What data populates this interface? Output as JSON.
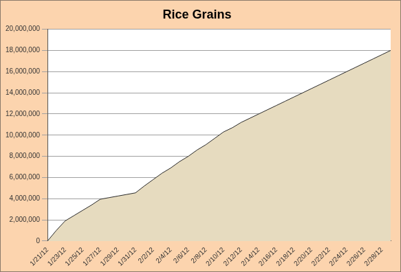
{
  "chart_data": {
    "type": "area",
    "title": "Rice Grains",
    "categories": [
      "1/21/12",
      null,
      "1/23/12",
      null,
      "1/25/12",
      null,
      "1/27/12",
      null,
      "1/29/12",
      null,
      "1/31/12",
      null,
      "2/2/12",
      null,
      "2/4/12",
      null,
      "2/6/12",
      null,
      "2/8/12",
      null,
      "2/10/12",
      null,
      "2/12/12",
      null,
      "2/14/12",
      null,
      "2/16/12",
      null,
      "2/18/12",
      null,
      "2/20/12",
      null,
      "2/22/12",
      null,
      "2/24/12",
      null,
      "2/26/12",
      null,
      "2/28/12",
      null
    ],
    "values": [
      0,
      1000000,
      1900000,
      2400000,
      2900000,
      3400000,
      3950000,
      4100000,
      4250000,
      4400000,
      4550000,
      5200000,
      5800000,
      6400000,
      6900000,
      7500000,
      8000000,
      8600000,
      9100000,
      9700000,
      10300000,
      10700000,
      11200000,
      11600000,
      12000000,
      12400000,
      12800000,
      13200000,
      13600000,
      14000000,
      14400000,
      14800000,
      15200000,
      15600000,
      16000000,
      16400000,
      16800000,
      17200000,
      17600000,
      18000000
    ],
    "color": "#e6dbbf",
    "ylim": [
      0,
      20000000
    ],
    "yticks": [
      {
        "value": 0,
        "label": "0"
      },
      {
        "value": 2000000,
        "label": "2,000,000"
      },
      {
        "value": 4000000,
        "label": "4,000,000"
      },
      {
        "value": 6000000,
        "label": "6,000,000"
      },
      {
        "value": 8000000,
        "label": "8,000,000"
      },
      {
        "value": 10000000,
        "label": "10,000,000"
      },
      {
        "value": 12000000,
        "label": "12,000,000"
      },
      {
        "value": 14000000,
        "label": "14,000,000"
      },
      {
        "value": 16000000,
        "label": "16,000,000"
      },
      {
        "value": 18000000,
        "label": "18,000,000"
      },
      {
        "value": 20000000,
        "label": "20,000,000"
      }
    ],
    "grid": true
  }
}
